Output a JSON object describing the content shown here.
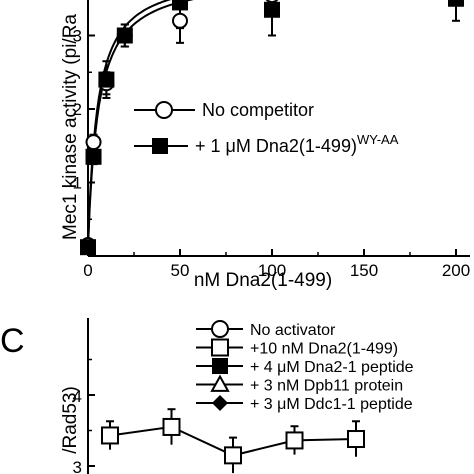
{
  "chart_data": [
    {
      "type": "scatter",
      "panel": "B",
      "xlabel": "nM Dna2(1-499)",
      "ylabel": "Mec1 kinase activity (pi/Ra",
      "xlim": [
        0,
        200
      ],
      "ylim": [
        0,
        3.8
      ],
      "x_ticks": [
        "0",
        "50",
        "100",
        "150",
        "200"
      ],
      "y_ticks": [
        "1",
        "2",
        "3"
      ],
      "series": [
        {
          "name": "No competitor",
          "marker": "open-circle",
          "x": [
            0,
            3,
            10,
            20,
            50,
            100
          ],
          "y": [
            0.15,
            1.55,
            2.35,
            3.0,
            3.2,
            3.55
          ],
          "err": [
            0.05,
            0.1,
            0.15,
            0.15,
            0.3,
            0.25
          ]
        },
        {
          "name": "+ 1 μM Dna2(1-499)",
          "name_superscript": "WY-AA",
          "marker": "filled-square",
          "x": [
            0,
            3,
            10,
            20,
            50,
            100,
            200
          ],
          "y": [
            0.12,
            1.35,
            2.4,
            3.0,
            3.45,
            3.35,
            3.5
          ],
          "err": [
            0.05,
            0.1,
            0.25,
            0.15,
            0.35,
            0.35,
            0.3
          ]
        }
      ],
      "fit_curves": [
        {
          "vmax": 3.75,
          "km": 5.0
        },
        {
          "vmax": 3.7,
          "km": 5.5
        }
      ]
    },
    {
      "type": "line",
      "panel": "C",
      "letter": "C",
      "ylabel": "/Rad53)",
      "y_ticks": [
        "4",
        "3"
      ],
      "ylim": [
        2.95,
        4.7
      ],
      "x": [
        0,
        1,
        2,
        3,
        4
      ],
      "series": [
        {
          "marker": "open-square",
          "y": [
            3.43,
            3.55,
            3.15,
            3.36,
            3.38
          ],
          "err": [
            0.2,
            0.25,
            0.25,
            0.2,
            0.25
          ]
        }
      ],
      "legend": [
        {
          "label": "No activator",
          "marker": "open-circle"
        },
        {
          "label": "+10 nM Dna2(1-499)",
          "marker": "open-square"
        },
        {
          "label": "+  4 μM Dna2-1 peptide",
          "marker": "filled-square"
        },
        {
          "label": "+  3 nM Dpb11 protein",
          "marker": "open-triangle"
        },
        {
          "label": "+  3 μM Ddc1-1 peptide",
          "marker": "filled-diamond"
        }
      ]
    }
  ]
}
